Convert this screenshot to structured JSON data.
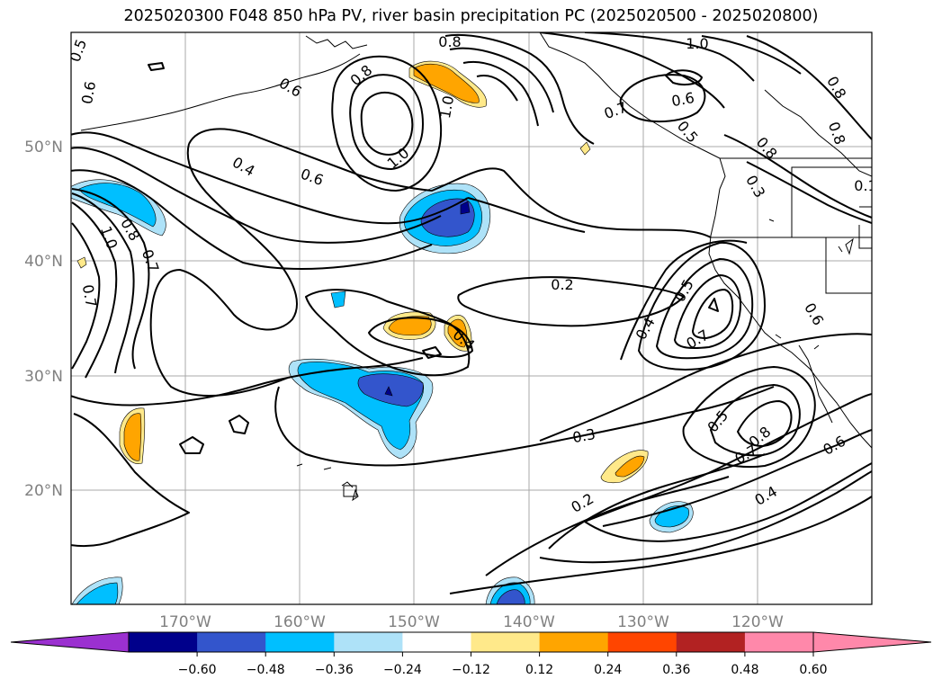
{
  "title": "2025020300 F048 850 hPa PV, river basin precipitation PC (2025020500 - 2025020800)",
  "map": {
    "lat_labels": [
      "50°N",
      "40°N",
      "30°N",
      "20°N"
    ],
    "lon_labels": [
      "170°W",
      "160°W",
      "150°W",
      "140°W",
      "130°W",
      "120°W"
    ],
    "contour_labels": [
      "0.5",
      "0.8",
      "1.0",
      "0.8",
      "0.6",
      "0.7",
      "0.6",
      "0.8",
      "1.0",
      "0.6",
      "0.4",
      "0.6",
      "1.0",
      "0.8",
      "0.5",
      "0.8",
      "0.3",
      "0.1",
      "0.8",
      "1.0",
      "0.7",
      "0.7",
      "0.2",
      "0.4",
      "0.5",
      "0.4",
      "0.7",
      "0.6",
      "0.3",
      "0.5",
      "0.8",
      "0.7",
      "0.6",
      "0.2",
      "0.4"
    ]
  },
  "colorbar": {
    "ticks": [
      "−0.60",
      "−0.48",
      "−0.36",
      "−0.24",
      "−0.12",
      "0.12",
      "0.24",
      "0.36",
      "0.48",
      "0.60"
    ],
    "colors": {
      "under": "#9b30d0",
      "bins": [
        "#00008b",
        "#3355cc",
        "#00bfff",
        "#aee2f8",
        "#ffffff",
        "#ffe98a",
        "#ffa500",
        "#ff4500",
        "#b22222",
        "#ff88aa"
      ],
      "over": "#ff88aa"
    }
  }
}
